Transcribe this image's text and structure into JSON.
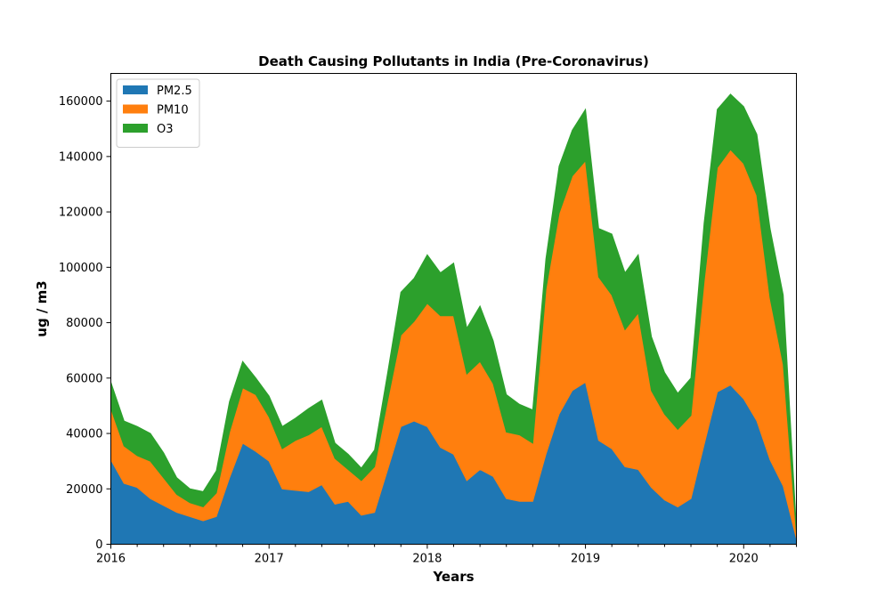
{
  "chart_data": {
    "type": "area",
    "stacked": true,
    "title": "Death Causing Pollutants in India (Pre-Coronavirus)",
    "xlabel": "Years",
    "ylabel": "ug / m3",
    "xlim": [
      "2016-01",
      "2020-05"
    ],
    "ylim": [
      0,
      170000
    ],
    "yticks": [
      0,
      20000,
      40000,
      60000,
      80000,
      100000,
      120000,
      140000,
      160000
    ],
    "xticks": [
      "2016",
      "2017",
      "2018",
      "2019",
      "2020"
    ],
    "grid": false,
    "legend_position": "top-left",
    "x": [
      "2016-01",
      "2016-02",
      "2016-03",
      "2016-04",
      "2016-05",
      "2016-06",
      "2016-07",
      "2016-08",
      "2016-09",
      "2016-10",
      "2016-11",
      "2016-12",
      "2017-01",
      "2017-02",
      "2017-03",
      "2017-04",
      "2017-05",
      "2017-06",
      "2017-07",
      "2017-08",
      "2017-09",
      "2017-10",
      "2017-11",
      "2017-12",
      "2018-01",
      "2018-02",
      "2018-03",
      "2018-04",
      "2018-05",
      "2018-06",
      "2018-07",
      "2018-08",
      "2018-09",
      "2018-10",
      "2018-11",
      "2018-12",
      "2019-01",
      "2019-02",
      "2019-03",
      "2019-04",
      "2019-05",
      "2019-06",
      "2019-07",
      "2019-08",
      "2019-09",
      "2019-10",
      "2019-11",
      "2019-12",
      "2020-01",
      "2020-02",
      "2020-03",
      "2020-04",
      "2020-05"
    ],
    "series": [
      {
        "name": "PM2.5",
        "color": "#1f77b4",
        "values": [
          30500,
          22000,
          20500,
          16500,
          14000,
          11500,
          10000,
          8500,
          10000,
          24000,
          36500,
          33500,
          30000,
          20000,
          19500,
          19000,
          21500,
          14500,
          15500,
          10500,
          11500,
          27000,
          42500,
          44500,
          42500,
          35000,
          32500,
          23000,
          27000,
          24500,
          16500,
          15500,
          15500,
          32500,
          47000,
          55500,
          58500,
          37500,
          34500,
          28000,
          27000,
          20500,
          16000,
          13500,
          16500,
          36000,
          55000,
          57500,
          52500,
          44500,
          30500,
          21000,
          2000
        ]
      },
      {
        "name": "PM10",
        "color": "#ff7f0e",
        "values": [
          18500,
          13500,
          11500,
          13500,
          10000,
          6500,
          5000,
          5000,
          8500,
          16500,
          20000,
          20500,
          16000,
          14500,
          18000,
          20500,
          21000,
          16500,
          11500,
          12500,
          16500,
          25000,
          33000,
          36000,
          44500,
          47500,
          50000,
          38500,
          39000,
          33500,
          24000,
          24000,
          21000,
          59500,
          72500,
          77500,
          80000,
          59000,
          55500,
          49500,
          56500,
          35000,
          31000,
          28000,
          30000,
          59000,
          81000,
          85000,
          85000,
          81500,
          58500,
          44000,
          2000
        ]
      },
      {
        "name": "O3",
        "color": "#2ca02c",
        "values": [
          9500,
          9000,
          10500,
          10000,
          9000,
          6000,
          5000,
          5500,
          8000,
          11000,
          9500,
          6000,
          7500,
          8000,
          8000,
          9500,
          9500,
          5500,
          5500,
          4500,
          6000,
          10000,
          15500,
          15500,
          17500,
          15500,
          19000,
          16500,
          20000,
          15500,
          13500,
          11000,
          12000,
          11000,
          17000,
          16500,
          18500,
          17500,
          22000,
          20500,
          21000,
          19500,
          15000,
          13000,
          13500,
          21000,
          21000,
          20000,
          20500,
          22000,
          25000,
          25000,
          1500
        ]
      }
    ]
  }
}
